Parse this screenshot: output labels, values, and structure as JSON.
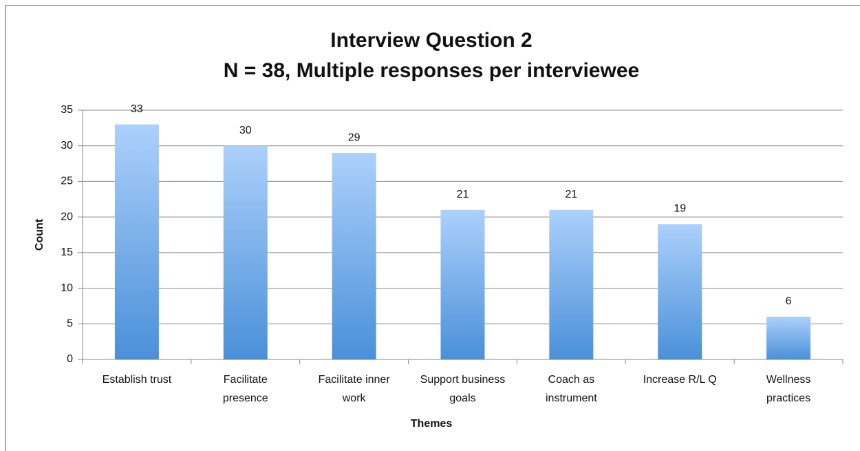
{
  "chart_data": {
    "type": "bar",
    "title": "Interview Question 2",
    "subtitle": "N = 38, Multiple responses per interviewee",
    "x_label": "Themes",
    "y_label": "Count",
    "categories": [
      "Establish trust",
      "Facilitate presence",
      "Facilitate inner work",
      "Support business goals",
      "Coach as instrument",
      "Increase R/L Q",
      "Wellness practices"
    ],
    "values": [
      33,
      30,
      29,
      21,
      21,
      19,
      6
    ],
    "color": "#4a90d9",
    "ylim": [
      0,
      35
    ],
    "yticks": [
      0,
      5,
      10,
      15,
      20,
      25,
      30,
      35
    ],
    "grid": true
  }
}
